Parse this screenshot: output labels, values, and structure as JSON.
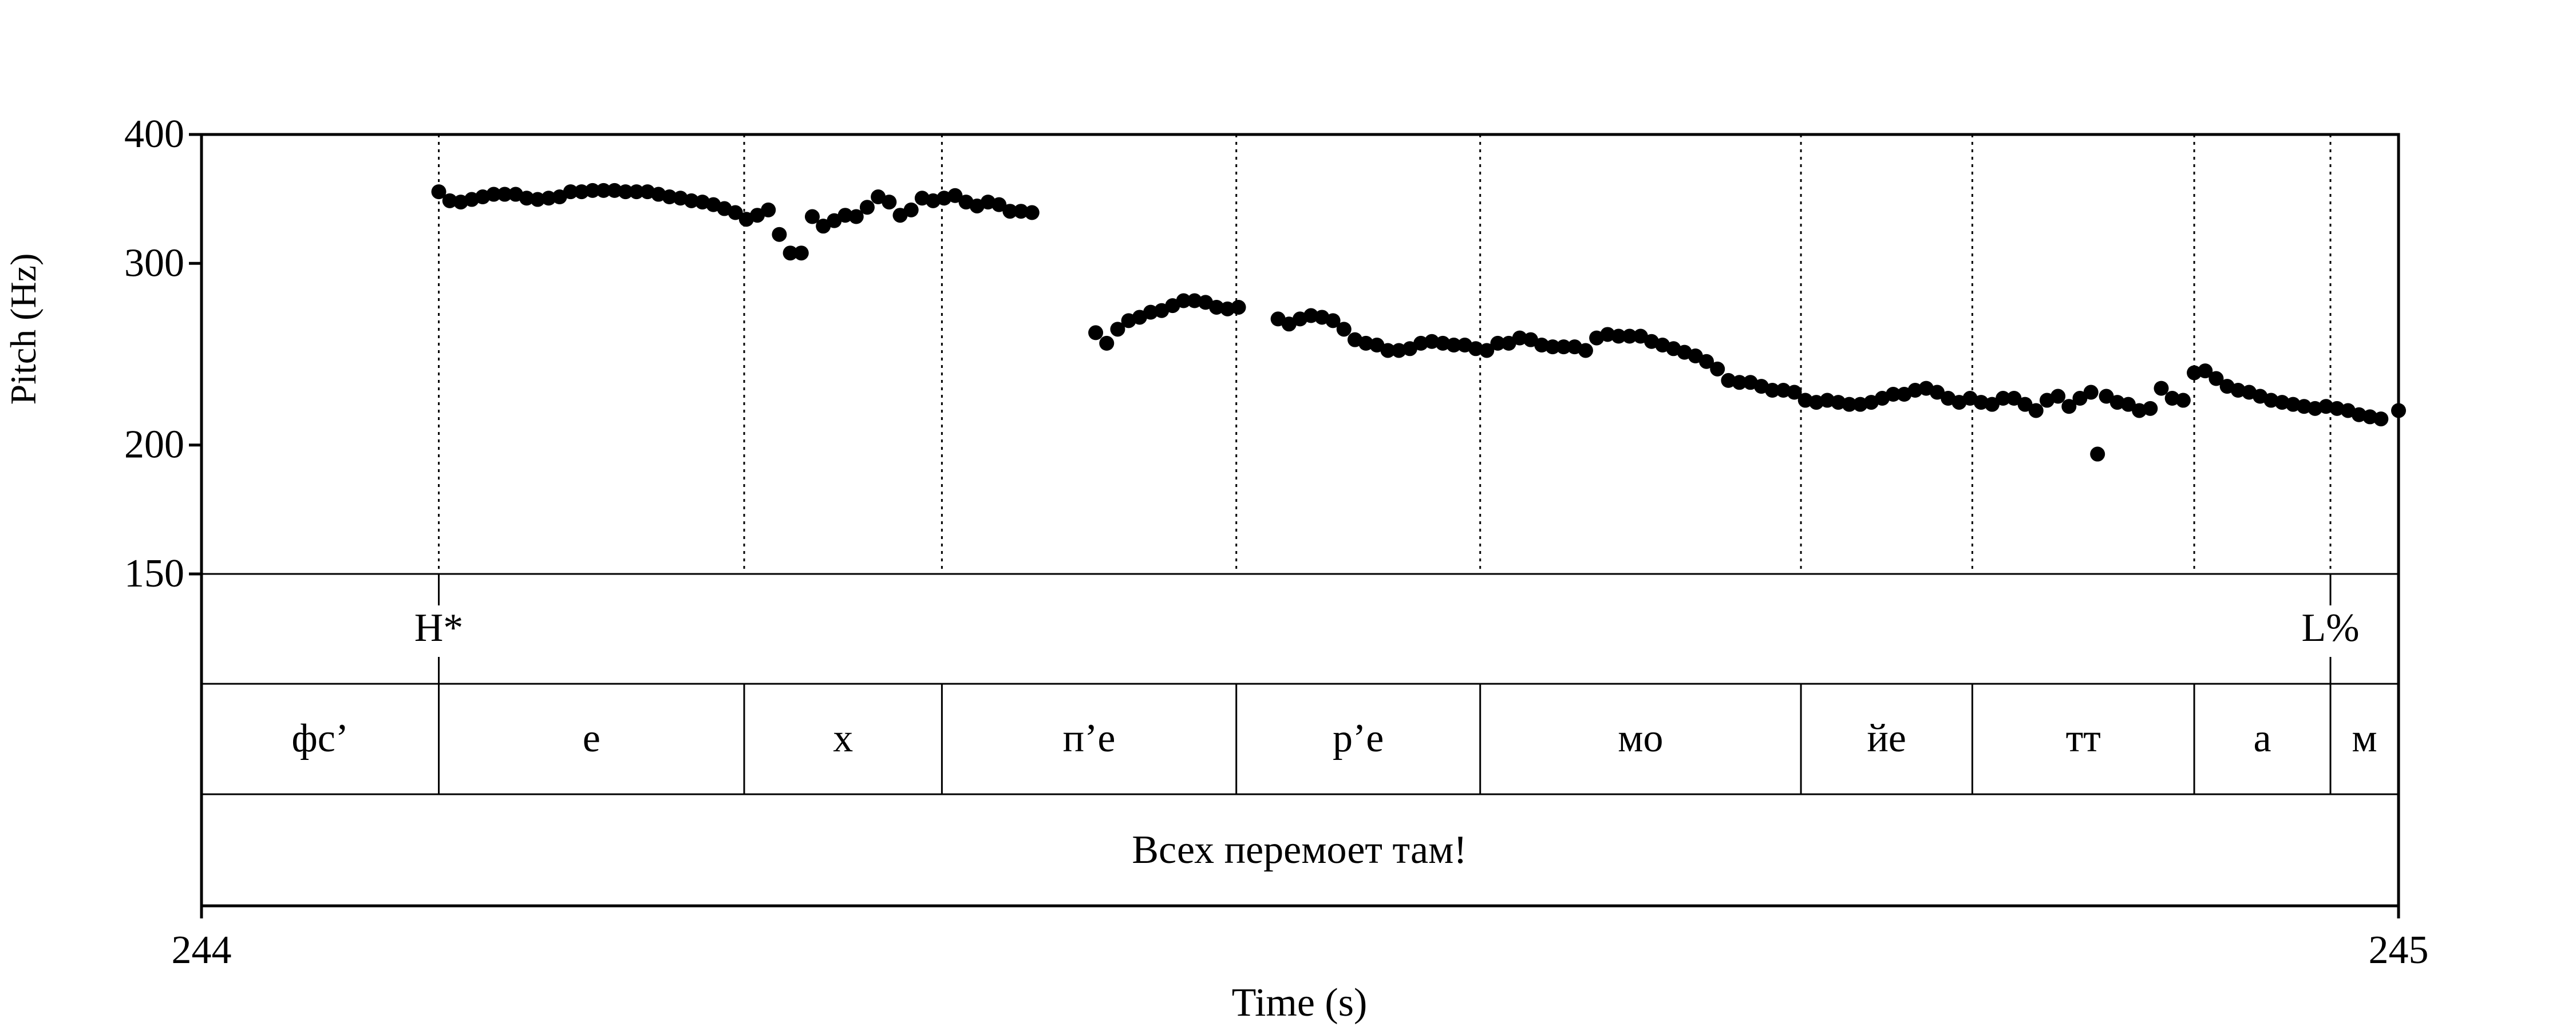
{
  "colors": {
    "ink": "#000000",
    "background": "#ffffff"
  },
  "chart_data": {
    "type": "scatter",
    "title": "",
    "xlabel": "Time (s)",
    "ylabel": "Pitch (Hz)",
    "xlim": [
      244,
      245
    ],
    "ylim": [
      150,
      400
    ],
    "yscale": "log",
    "x_ticks": [
      "244",
      "245"
    ],
    "y_ticks": [
      {
        "value": 150,
        "label": "150"
      },
      {
        "value": 200,
        "label": "200"
      },
      {
        "value": 300,
        "label": "300"
      },
      {
        "value": 400,
        "label": "400"
      }
    ],
    "boundaries": [
      244.108,
      244.247,
      244.337,
      244.471,
      244.582,
      244.728,
      244.806,
      244.907,
      244.969,
      245.0
    ],
    "tones": [
      {
        "t": 244.108,
        "label": "H*"
      },
      {
        "t": 244.969,
        "label": "L%"
      }
    ],
    "segments": [
      {
        "start": 244.0,
        "end": 244.108,
        "label": "фс’"
      },
      {
        "start": 244.108,
        "end": 244.247,
        "label": "е"
      },
      {
        "start": 244.247,
        "end": 244.337,
        "label": "х"
      },
      {
        "start": 244.337,
        "end": 244.471,
        "label": "п’е"
      },
      {
        "start": 244.471,
        "end": 244.582,
        "label": "р’е"
      },
      {
        "start": 244.582,
        "end": 244.728,
        "label": "мо"
      },
      {
        "start": 244.728,
        "end": 244.806,
        "label": "йе"
      },
      {
        "start": 244.806,
        "end": 244.907,
        "label": "тт"
      },
      {
        "start": 244.907,
        "end": 244.969,
        "label": "а"
      },
      {
        "start": 244.969,
        "end": 245.0,
        "label": "м"
      }
    ],
    "sentence": "Всех перемоет там!",
    "series": [
      {
        "name": "pitch",
        "points": [
          [
            244.108,
            352
          ],
          [
            244.113,
            345
          ],
          [
            244.118,
            344
          ],
          [
            244.123,
            346
          ],
          [
            244.128,
            348
          ],
          [
            244.133,
            350
          ],
          [
            244.138,
            350
          ],
          [
            244.143,
            350
          ],
          [
            244.148,
            347
          ],
          [
            244.153,
            346
          ],
          [
            244.158,
            347
          ],
          [
            244.163,
            348
          ],
          [
            244.168,
            352
          ],
          [
            244.173,
            352
          ],
          [
            244.178,
            353
          ],
          [
            244.183,
            353
          ],
          [
            244.188,
            353
          ],
          [
            244.193,
            352
          ],
          [
            244.198,
            352
          ],
          [
            244.203,
            352
          ],
          [
            244.208,
            350
          ],
          [
            244.213,
            348
          ],
          [
            244.218,
            347
          ],
          [
            244.223,
            345
          ],
          [
            244.228,
            344
          ],
          [
            244.233,
            342
          ],
          [
            244.238,
            339
          ],
          [
            244.243,
            336
          ],
          [
            244.248,
            331
          ],
          [
            244.253,
            334
          ],
          [
            244.258,
            338
          ],
          [
            244.263,
            320
          ],
          [
            244.268,
            307
          ],
          [
            244.273,
            307
          ],
          [
            244.278,
            333
          ],
          [
            244.283,
            326
          ],
          [
            244.288,
            330
          ],
          [
            244.293,
            334
          ],
          [
            244.298,
            333
          ],
          [
            244.303,
            340
          ],
          [
            244.308,
            348
          ],
          [
            244.313,
            344
          ],
          [
            244.318,
            334
          ],
          [
            244.323,
            338
          ],
          [
            244.328,
            347
          ],
          [
            244.333,
            345
          ],
          [
            244.338,
            347
          ],
          [
            244.343,
            349
          ],
          [
            244.348,
            344
          ],
          [
            244.353,
            341
          ],
          [
            244.358,
            344
          ],
          [
            244.363,
            342
          ],
          [
            244.368,
            337
          ],
          [
            244.373,
            337
          ],
          [
            244.378,
            336
          ],
          [
            244.407,
            257
          ],
          [
            244.412,
            251
          ],
          [
            244.417,
            259
          ],
          [
            244.422,
            264
          ],
          [
            244.427,
            266
          ],
          [
            244.432,
            269
          ],
          [
            244.437,
            270
          ],
          [
            244.442,
            273
          ],
          [
            244.447,
            276
          ],
          [
            244.452,
            276
          ],
          [
            244.457,
            275
          ],
          [
            244.462,
            272
          ],
          [
            244.467,
            271
          ],
          [
            244.472,
            272
          ],
          [
            244.49,
            265
          ],
          [
            244.495,
            262
          ],
          [
            244.5,
            265
          ],
          [
            244.505,
            267
          ],
          [
            244.51,
            266
          ],
          [
            244.515,
            264
          ],
          [
            244.52,
            259
          ],
          [
            244.525,
            253
          ],
          [
            244.53,
            251
          ],
          [
            244.535,
            250
          ],
          [
            244.54,
            247
          ],
          [
            244.545,
            247
          ],
          [
            244.55,
            248
          ],
          [
            244.555,
            251
          ],
          [
            244.56,
            252
          ],
          [
            244.565,
            251
          ],
          [
            244.57,
            250
          ],
          [
            244.575,
            250
          ],
          [
            244.58,
            248
          ],
          [
            244.585,
            247
          ],
          [
            244.59,
            251
          ],
          [
            244.595,
            251
          ],
          [
            244.6,
            254
          ],
          [
            244.605,
            253
          ],
          [
            244.61,
            250
          ],
          [
            244.615,
            249
          ],
          [
            244.62,
            249
          ],
          [
            244.625,
            249
          ],
          [
            244.63,
            247
          ],
          [
            244.635,
            254
          ],
          [
            244.64,
            256
          ],
          [
            244.645,
            255
          ],
          [
            244.65,
            255
          ],
          [
            244.655,
            255
          ],
          [
            244.66,
            252
          ],
          [
            244.665,
            250
          ],
          [
            244.67,
            248
          ],
          [
            244.675,
            246
          ],
          [
            244.68,
            244
          ],
          [
            244.685,
            241
          ],
          [
            244.69,
            237
          ],
          [
            244.695,
            231
          ],
          [
            244.7,
            230
          ],
          [
            244.705,
            230
          ],
          [
            244.71,
            228
          ],
          [
            244.715,
            226
          ],
          [
            244.72,
            226
          ],
          [
            244.725,
            225
          ],
          [
            244.73,
            221
          ],
          [
            244.735,
            220
          ],
          [
            244.74,
            221
          ],
          [
            244.745,
            220
          ],
          [
            244.75,
            219
          ],
          [
            244.755,
            219
          ],
          [
            244.76,
            220
          ],
          [
            244.765,
            222
          ],
          [
            244.77,
            224
          ],
          [
            244.775,
            224
          ],
          [
            244.78,
            226
          ],
          [
            244.785,
            227
          ],
          [
            244.79,
            225
          ],
          [
            244.795,
            222
          ],
          [
            244.8,
            220
          ],
          [
            244.805,
            222
          ],
          [
            244.81,
            220
          ],
          [
            244.815,
            219
          ],
          [
            244.82,
            222
          ],
          [
            244.825,
            222
          ],
          [
            244.83,
            219
          ],
          [
            244.835,
            216
          ],
          [
            244.84,
            221
          ],
          [
            244.845,
            223
          ],
          [
            244.85,
            218
          ],
          [
            244.855,
            222
          ],
          [
            244.86,
            225
          ],
          [
            244.863,
            196
          ],
          [
            244.867,
            223
          ],
          [
            244.872,
            220
          ],
          [
            244.877,
            219
          ],
          [
            244.882,
            216
          ],
          [
            244.887,
            217
          ],
          [
            244.892,
            227
          ],
          [
            244.897,
            222
          ],
          [
            244.902,
            221
          ],
          [
            244.907,
            235
          ],
          [
            244.912,
            236
          ],
          [
            244.917,
            232
          ],
          [
            244.922,
            228
          ],
          [
            244.927,
            226
          ],
          [
            244.932,
            225
          ],
          [
            244.937,
            223
          ],
          [
            244.942,
            221
          ],
          [
            244.947,
            220
          ],
          [
            244.952,
            219
          ],
          [
            244.957,
            218
          ],
          [
            244.962,
            217
          ],
          [
            244.967,
            218
          ],
          [
            244.972,
            217
          ],
          [
            244.977,
            216
          ],
          [
            244.982,
            214
          ],
          [
            244.987,
            213
          ],
          [
            244.992,
            212
          ],
          [
            245.0,
            216
          ]
        ]
      }
    ]
  }
}
